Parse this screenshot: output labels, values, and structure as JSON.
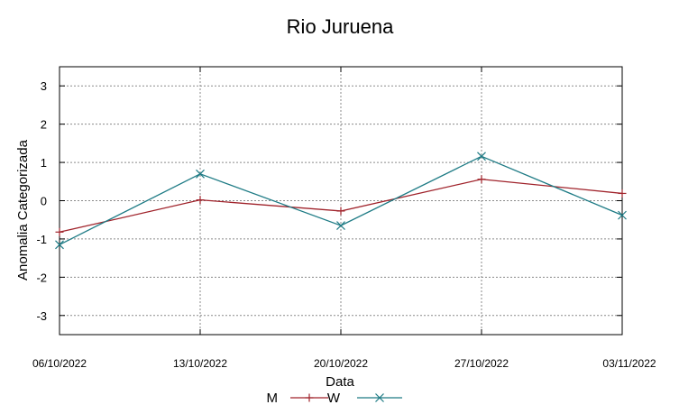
{
  "chart_data": {
    "type": "line",
    "title": "Rio Juruena",
    "xlabel": "Data",
    "ylabel": "Anomalia Categorizada",
    "categories": [
      "06/10/2022",
      "13/10/2022",
      "20/10/2022",
      "27/10/2022",
      "03/11/2022"
    ],
    "ylim": [
      -3.5,
      3.5
    ],
    "yticks": [
      -3,
      -2,
      -1,
      0,
      1,
      2,
      3
    ],
    "grid": true,
    "legend_position": "bottom",
    "series": [
      {
        "name": "M",
        "values": [
          -0.82,
          0.02,
          -0.27,
          0.56,
          0.19
        ],
        "color": "#a0232b",
        "marker": "plus"
      },
      {
        "name": "W",
        "values": [
          -1.15,
          0.7,
          -0.65,
          1.16,
          -0.38
        ],
        "color": "#1e7b85",
        "marker": "cross"
      }
    ]
  }
}
